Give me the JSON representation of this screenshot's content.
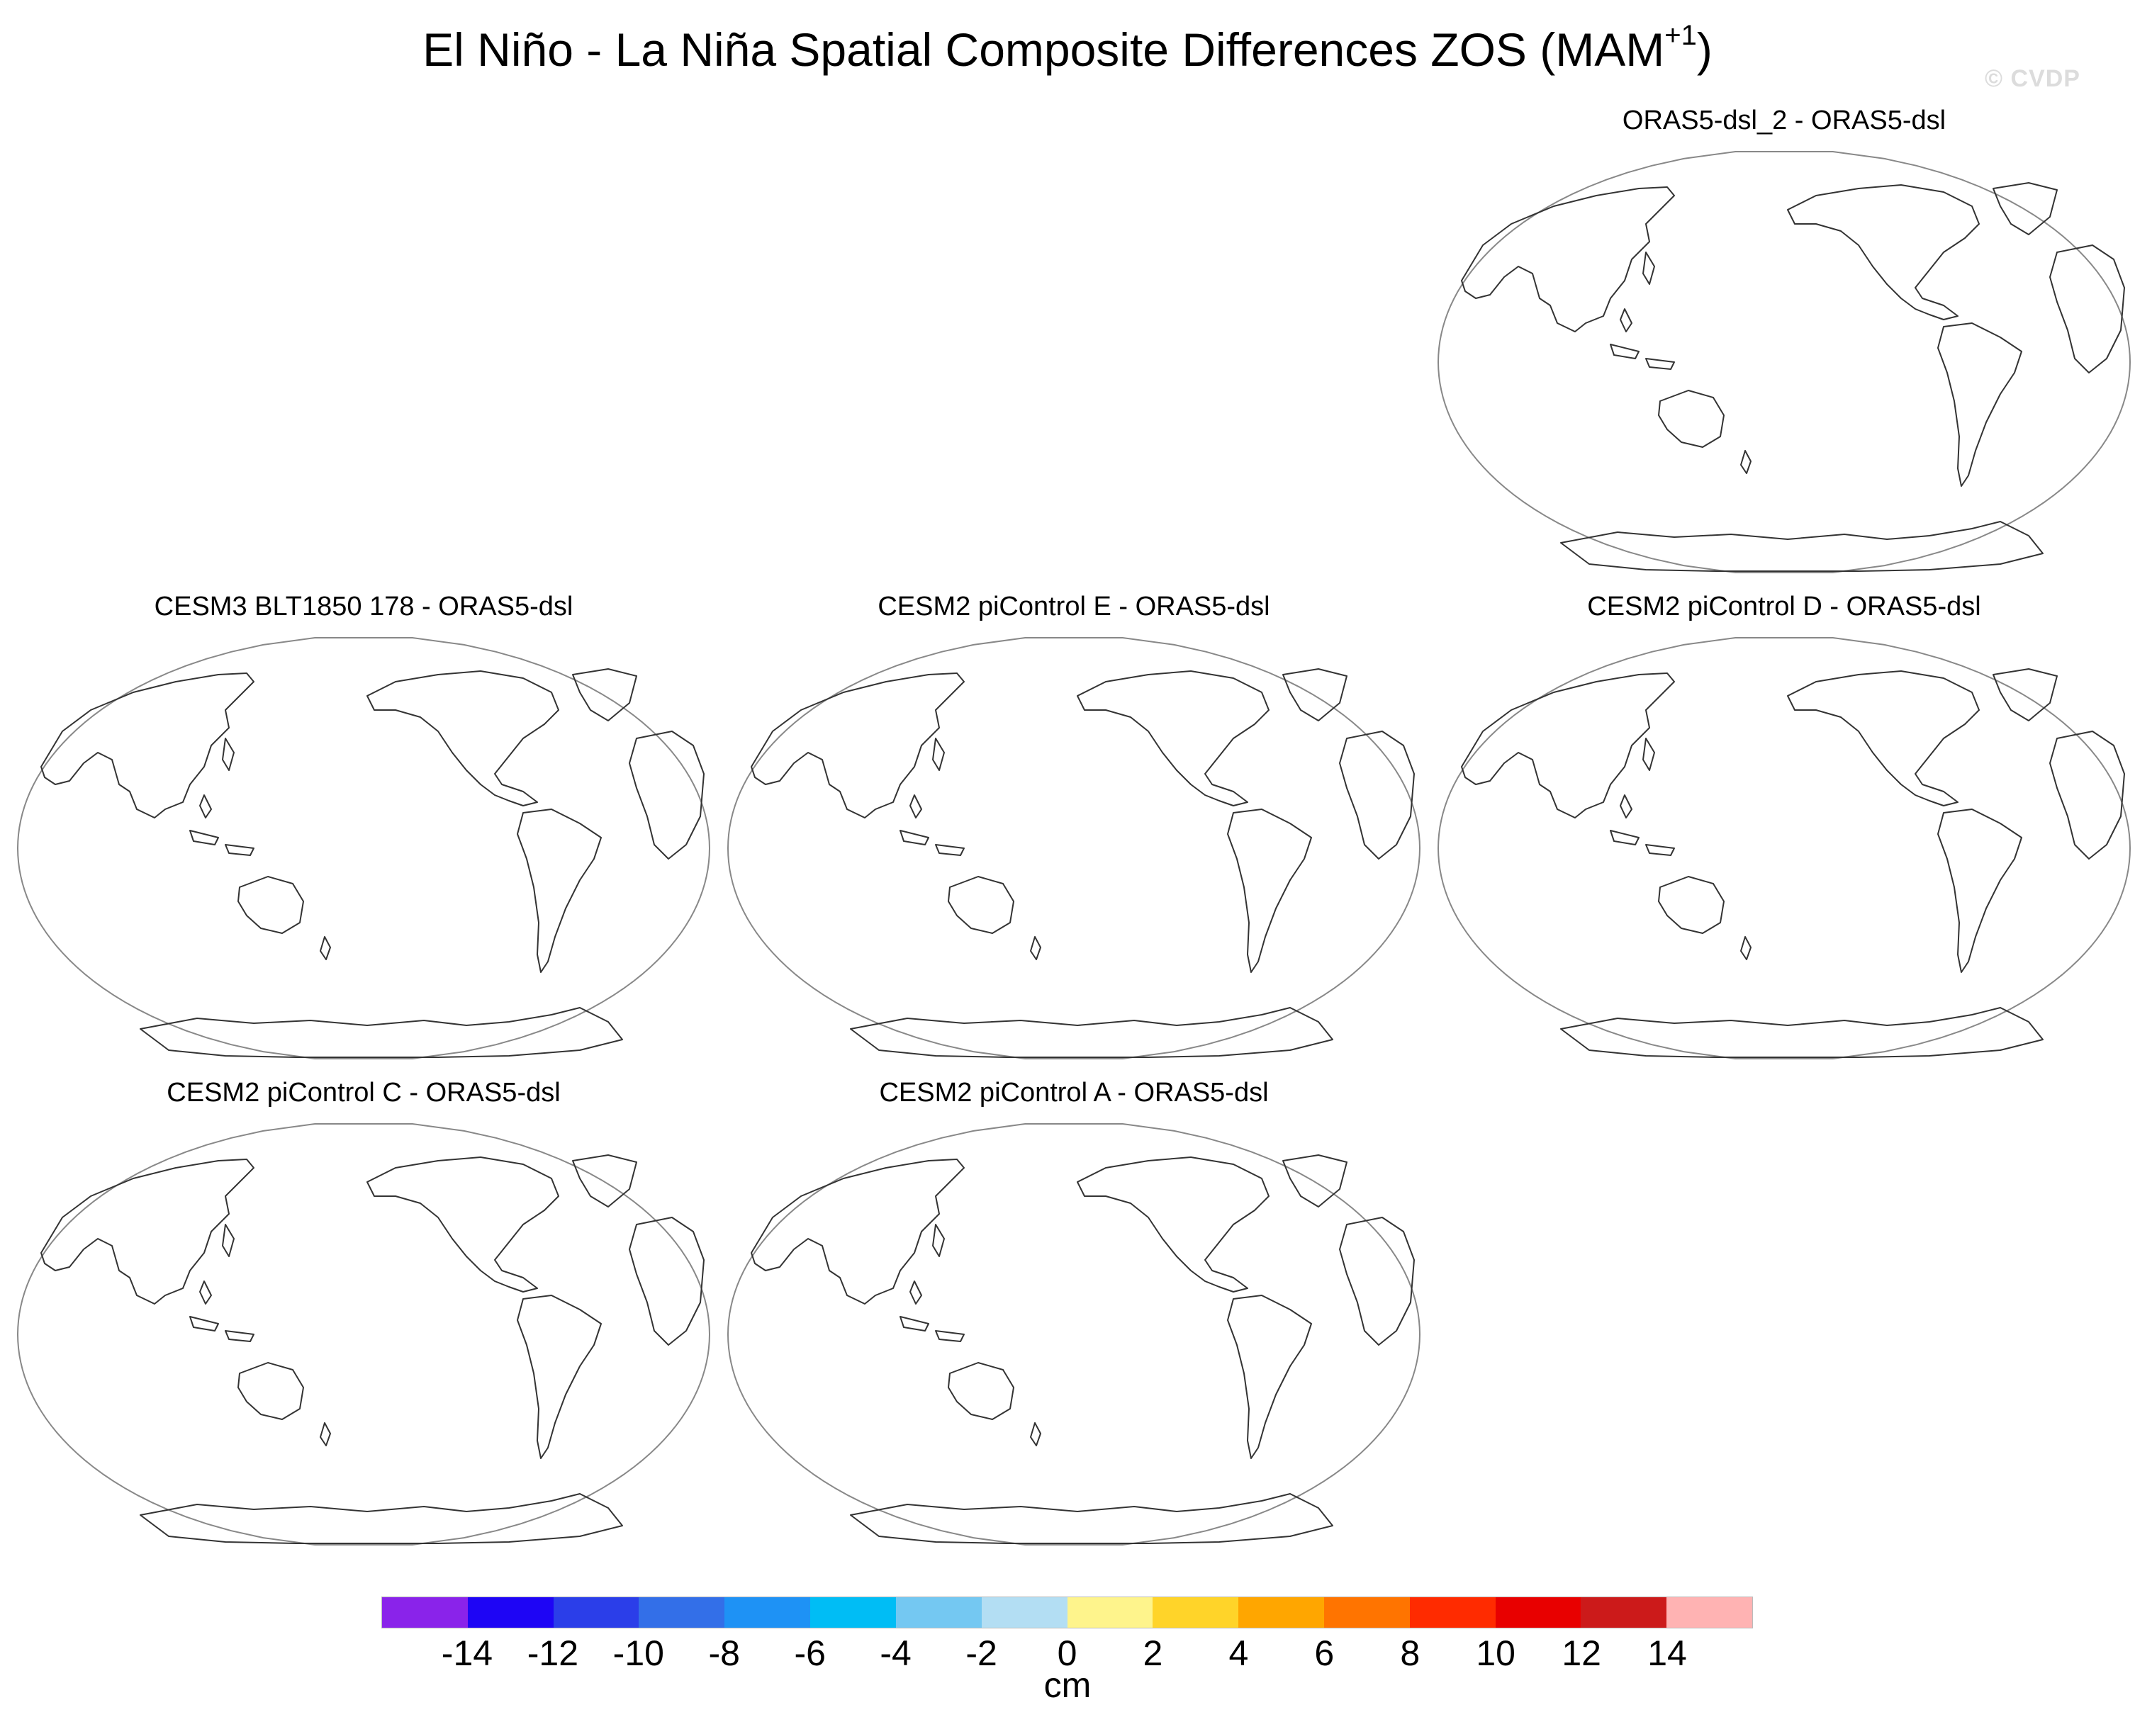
{
  "figure": {
    "title_main": "El Niño - La Niña Spatial Composite Differences ZOS (MAM",
    "title_sup": "+1",
    "title_end": ")",
    "watermark": "© CVDP"
  },
  "panels": [
    {
      "title": "ORAS5-dsl_2 - ORAS5-dsl"
    },
    {
      "title": "CESM3 BLT1850 178 - ORAS5-dsl"
    },
    {
      "title": "CESM2 piControl E - ORAS5-dsl"
    },
    {
      "title": "CESM2 piControl D - ORAS5-dsl"
    },
    {
      "title": "CESM2 piControl C - ORAS5-dsl"
    },
    {
      "title": "CESM2 piControl A - ORAS5-dsl"
    }
  ],
  "colorbar": {
    "unit": "cm",
    "ticks": [
      "-14",
      "-12",
      "-10",
      "-8",
      "-6",
      "-4",
      "-2",
      "0",
      "2",
      "4",
      "6",
      "8",
      "10",
      "12",
      "14"
    ],
    "colors": [
      "#8a23ea",
      "#1e05f5",
      "#2b3ee9",
      "#336fe8",
      "#1e92f5",
      "#00bdf5",
      "#74c8f2",
      "#b3def3",
      "#fef48c",
      "#ffd429",
      "#ffa600",
      "#ff7400",
      "#ff2b00",
      "#e80000",
      "#cc1a1a",
      "#ffb3b3"
    ]
  }
}
